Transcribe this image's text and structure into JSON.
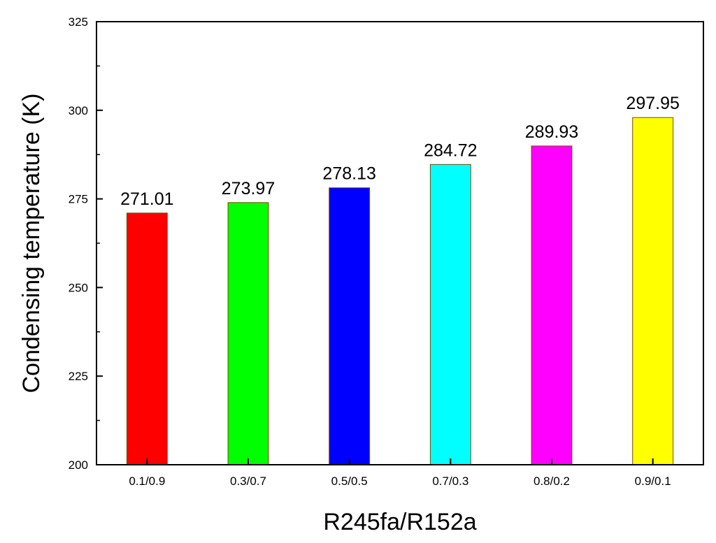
{
  "chart_data": {
    "type": "bar",
    "title": "",
    "xlabel": "R245fa/R152a",
    "ylabel": "Condensing temperature (K)",
    "categories": [
      "0.1/0.9",
      "0.3/0.7",
      "0.5/0.5",
      "0.7/0.3",
      "0.8/0.2",
      "0.9/0.1"
    ],
    "values": [
      271.01,
      273.97,
      278.13,
      284.72,
      289.93,
      297.95
    ],
    "value_labels": [
      "271.01",
      "273.97",
      "278.13",
      "284.72",
      "289.93",
      "297.95"
    ],
    "bar_colors": [
      "#ff0000",
      "#00ff00",
      "#0000ff",
      "#00ffff",
      "#ff00ff",
      "#ffff00"
    ],
    "ylim": [
      200,
      325
    ],
    "yticks": [
      200,
      225,
      250,
      275,
      300,
      325
    ],
    "ytick_labels": [
      "200",
      "225",
      "250",
      "275",
      "300",
      "325"
    ],
    "grid": false,
    "legend": "none"
  }
}
